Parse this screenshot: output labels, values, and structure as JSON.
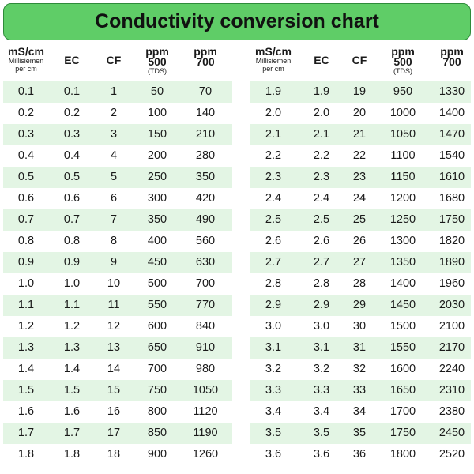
{
  "title": "Conductivity conversion chart",
  "colors": {
    "title_bg": "#5fcd67",
    "row_highlight": "#e3f5e4"
  },
  "headers": {
    "ms": {
      "main": "mS/cm",
      "sub1": "Millisiemen",
      "sub2": "per cm"
    },
    "ec": {
      "main": "EC"
    },
    "cf": {
      "main": "CF"
    },
    "ppm500": {
      "main1": "ppm",
      "main2": "500",
      "sub": "(TDS)"
    },
    "ppm700": {
      "main1": "ppm",
      "main2": "700"
    }
  },
  "chart_data": {
    "type": "table",
    "title": "Conductivity conversion chart",
    "columns": [
      "mS/cm Millisiemen per cm",
      "EC",
      "CF",
      "ppm 500 (TDS)",
      "ppm 700"
    ],
    "left_rows": [
      [
        "0.1",
        "0.1",
        "1",
        "50",
        "70"
      ],
      [
        "0.2",
        "0.2",
        "2",
        "100",
        "140"
      ],
      [
        "0.3",
        "0.3",
        "3",
        "150",
        "210"
      ],
      [
        "0.4",
        "0.4",
        "4",
        "200",
        "280"
      ],
      [
        "0.5",
        "0.5",
        "5",
        "250",
        "350"
      ],
      [
        "0.6",
        "0.6",
        "6",
        "300",
        "420"
      ],
      [
        "0.7",
        "0.7",
        "7",
        "350",
        "490"
      ],
      [
        "0.8",
        "0.8",
        "8",
        "400",
        "560"
      ],
      [
        "0.9",
        "0.9",
        "9",
        "450",
        "630"
      ],
      [
        "1.0",
        "1.0",
        "10",
        "500",
        "700"
      ],
      [
        "1.1",
        "1.1",
        "11",
        "550",
        "770"
      ],
      [
        "1.2",
        "1.2",
        "12",
        "600",
        "840"
      ],
      [
        "1.3",
        "1.3",
        "13",
        "650",
        "910"
      ],
      [
        "1.4",
        "1.4",
        "14",
        "700",
        "980"
      ],
      [
        "1.5",
        "1.5",
        "15",
        "750",
        "1050"
      ],
      [
        "1.6",
        "1.6",
        "16",
        "800",
        "1120"
      ],
      [
        "1.7",
        "1.7",
        "17",
        "850",
        "1190"
      ],
      [
        "1.8",
        "1.8",
        "18",
        "900",
        "1260"
      ]
    ],
    "right_rows": [
      [
        "1.9",
        "1.9",
        "19",
        "950",
        "1330"
      ],
      [
        "2.0",
        "2.0",
        "20",
        "1000",
        "1400"
      ],
      [
        "2.1",
        "2.1",
        "21",
        "1050",
        "1470"
      ],
      [
        "2.2",
        "2.2",
        "22",
        "1100",
        "1540"
      ],
      [
        "2.3",
        "2.3",
        "23",
        "1150",
        "1610"
      ],
      [
        "2.4",
        "2.4",
        "24",
        "1200",
        "1680"
      ],
      [
        "2.5",
        "2.5",
        "25",
        "1250",
        "1750"
      ],
      [
        "2.6",
        "2.6",
        "26",
        "1300",
        "1820"
      ],
      [
        "2.7",
        "2.7",
        "27",
        "1350",
        "1890"
      ],
      [
        "2.8",
        "2.8",
        "28",
        "1400",
        "1960"
      ],
      [
        "2.9",
        "2.9",
        "29",
        "1450",
        "2030"
      ],
      [
        "3.0",
        "3.0",
        "30",
        "1500",
        "2100"
      ],
      [
        "3.1",
        "3.1",
        "31",
        "1550",
        "2170"
      ],
      [
        "3.2",
        "3.2",
        "32",
        "1600",
        "2240"
      ],
      [
        "3.3",
        "3.3",
        "33",
        "1650",
        "2310"
      ],
      [
        "3.4",
        "3.4",
        "34",
        "1700",
        "2380"
      ],
      [
        "3.5",
        "3.5",
        "35",
        "1750",
        "2450"
      ],
      [
        "3.6",
        "3.6",
        "36",
        "1800",
        "2520"
      ]
    ]
  }
}
